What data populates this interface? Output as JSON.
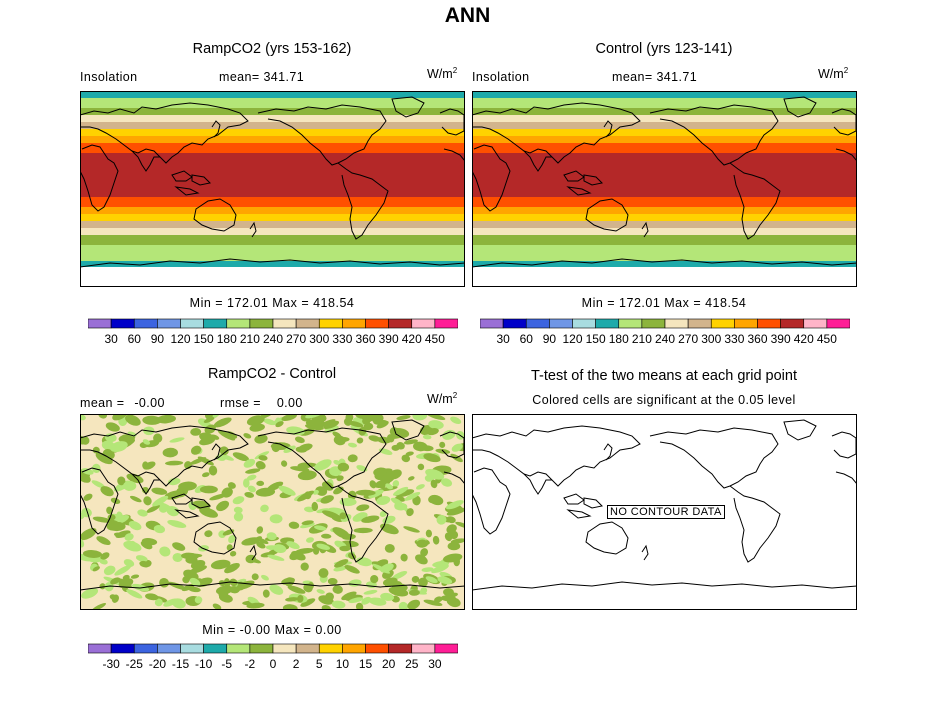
{
  "title": "ANN",
  "panels": {
    "tl": {
      "title": "RampCO2 (yrs 153-162)",
      "var_label": "Insolation",
      "mean_label": "mean=",
      "mean_value": "341.71",
      "units": "W/m",
      "units_exp": "2",
      "stats": "Min = 172.01  Max = 418.54"
    },
    "tr": {
      "title": "Control (yrs 123-141)",
      "var_label": "Insolation",
      "mean_label": "mean=",
      "mean_value": "341.71",
      "units": "W/m",
      "units_exp": "2",
      "stats": "Min = 172.01  Max = 418.54"
    },
    "bl": {
      "title": "RampCO2 - Control",
      "mean_label": "mean =",
      "mean_value": "-0.00",
      "rmse_label": "rmse =",
      "rmse_value": "0.00",
      "units": "W/m",
      "units_exp": "2",
      "stats": "Min =   -0.00 Max =    0.00"
    },
    "br": {
      "title": "T-test of the two means at each grid point",
      "subtitle": "Colored cells are significant at the 0.05 level",
      "no_data": "NO CONTOUR DATA"
    }
  },
  "colorbars": {
    "abs": {
      "colors": [
        "#9a6fd6",
        "#0000c8",
        "#3c64e0",
        "#6f96e6",
        "#a8dce0",
        "#1eaaaa",
        "#b4e678",
        "#8cb43c",
        "#f5e6be",
        "#d2b48c",
        "#ffd200",
        "#ffa500",
        "#ff5000",
        "#b42828",
        "#ffb4c8",
        "#ff1e96"
      ],
      "labels": [
        "30",
        "60",
        "90",
        "120",
        "150",
        "180",
        "210",
        "240",
        "270",
        "300",
        "330",
        "360",
        "390",
        "420",
        "450"
      ]
    },
    "diff": {
      "colors": [
        "#9a6fd6",
        "#0000c8",
        "#3c64e0",
        "#6f96e6",
        "#a8dce0",
        "#1eaaaa",
        "#b4e678",
        "#8cb43c",
        "#f5e6be",
        "#d2b48c",
        "#ffd200",
        "#ffa500",
        "#ff5000",
        "#b42828",
        "#ffb4c8",
        "#ff1e96"
      ],
      "labels": [
        "-30",
        "-25",
        "-20",
        "-15",
        "-10",
        "-5",
        "-2",
        "0",
        "2",
        "5",
        "10",
        "15",
        "20",
        "25",
        "30"
      ]
    }
  },
  "insolation_bands": [
    {
      "color": "#1eaaaa"
    },
    {
      "color": "#b4e678"
    },
    {
      "color": "#8cb43c"
    },
    {
      "color": "#f5e6be"
    },
    {
      "color": "#d2b48c"
    },
    {
      "color": "#ffd200"
    },
    {
      "color": "#ffa500"
    },
    {
      "color": "#ff5000"
    },
    {
      "color": "#b42828"
    },
    {
      "color": "#ff5000"
    },
    {
      "color": "#ffa500"
    },
    {
      "color": "#ffd200"
    },
    {
      "color": "#d2b48c"
    },
    {
      "color": "#f5e6be"
    },
    {
      "color": "#8cb43c"
    },
    {
      "color": "#b4e678"
    },
    {
      "color": "#1eaaaa"
    }
  ],
  "diff_colors": {
    "base": "#f5e6be",
    "patch": "#8cb43c",
    "patch_light": "#b4e678"
  }
}
